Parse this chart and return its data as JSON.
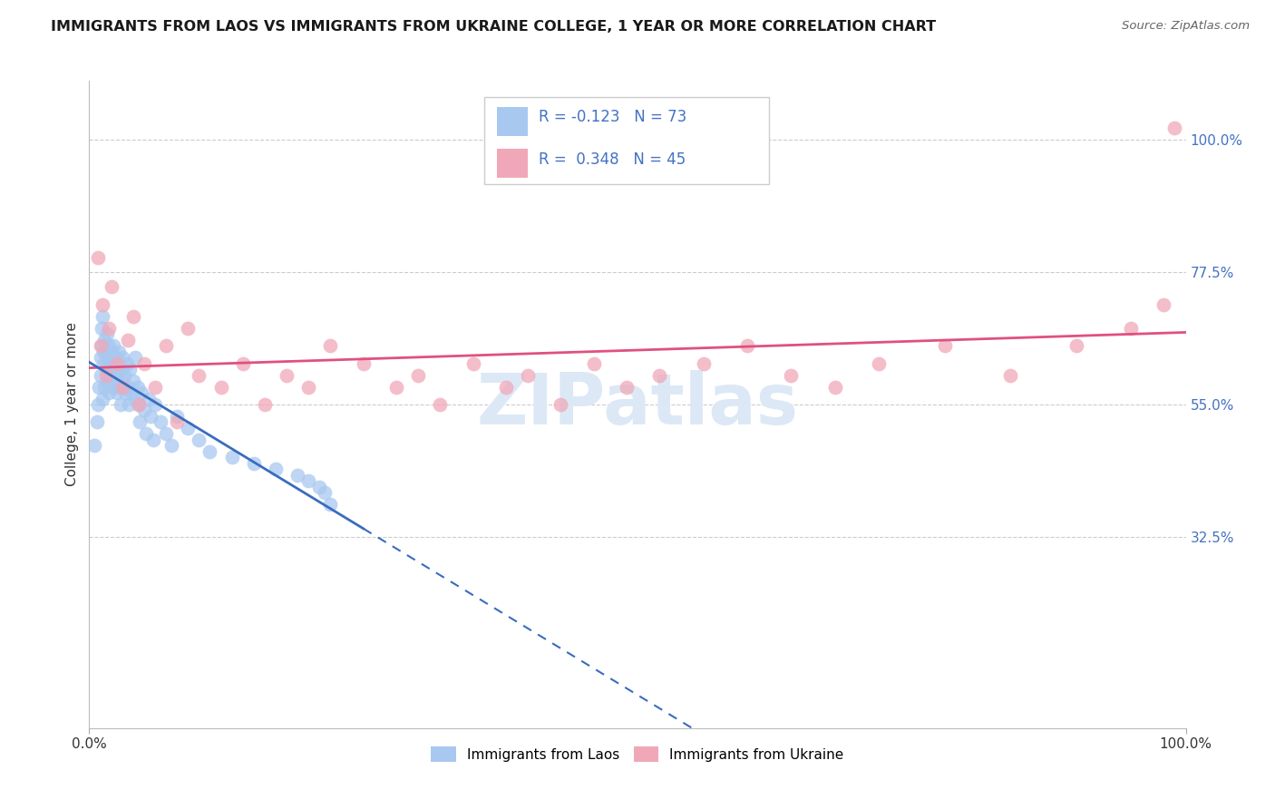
{
  "title": "IMMIGRANTS FROM LAOS VS IMMIGRANTS FROM UKRAINE COLLEGE, 1 YEAR OR MORE CORRELATION CHART",
  "source": "Source: ZipAtlas.com",
  "ylabel": "College, 1 year or more",
  "legend_label1": "Immigrants from Laos",
  "legend_label2": "Immigrants from Ukraine",
  "R1": -0.123,
  "N1": 73,
  "R2": 0.348,
  "N2": 45,
  "color1": "#a8c8f0",
  "color2": "#f0a8b8",
  "line1_color": "#3a6cbf",
  "line2_color": "#e05080",
  "watermark_color": "#dce8f5",
  "xlim": [
    0.0,
    1.0
  ],
  "ylim": [
    0.0,
    1.1
  ],
  "ytick_vals": [
    0.325,
    0.55,
    0.775,
    1.0
  ],
  "ytick_labels": [
    "32.5%",
    "55.0%",
    "77.5%",
    "100.0%"
  ],
  "laos_x": [
    0.005,
    0.007,
    0.008,
    0.009,
    0.01,
    0.01,
    0.011,
    0.011,
    0.012,
    0.012,
    0.013,
    0.013,
    0.014,
    0.014,
    0.015,
    0.015,
    0.016,
    0.016,
    0.017,
    0.018,
    0.018,
    0.019,
    0.02,
    0.02,
    0.021,
    0.022,
    0.022,
    0.023,
    0.024,
    0.025,
    0.025,
    0.026,
    0.027,
    0.028,
    0.028,
    0.029,
    0.03,
    0.03,
    0.032,
    0.033,
    0.034,
    0.035,
    0.036,
    0.037,
    0.038,
    0.04,
    0.041,
    0.042,
    0.044,
    0.045,
    0.046,
    0.048,
    0.05,
    0.052,
    0.054,
    0.056,
    0.058,
    0.06,
    0.065,
    0.07,
    0.075,
    0.08,
    0.09,
    0.1,
    0.11,
    0.13,
    0.15,
    0.17,
    0.19,
    0.2,
    0.21,
    0.215,
    0.22
  ],
  "laos_y": [
    0.48,
    0.52,
    0.55,
    0.58,
    0.6,
    0.63,
    0.65,
    0.68,
    0.56,
    0.7,
    0.62,
    0.64,
    0.58,
    0.66,
    0.61,
    0.64,
    0.59,
    0.67,
    0.63,
    0.57,
    0.65,
    0.6,
    0.62,
    0.64,
    0.58,
    0.61,
    0.65,
    0.59,
    0.63,
    0.57,
    0.6,
    0.62,
    0.64,
    0.58,
    0.61,
    0.55,
    0.59,
    0.63,
    0.6,
    0.57,
    0.62,
    0.58,
    0.55,
    0.61,
    0.57,
    0.59,
    0.56,
    0.63,
    0.58,
    0.55,
    0.52,
    0.57,
    0.54,
    0.5,
    0.56,
    0.53,
    0.49,
    0.55,
    0.52,
    0.5,
    0.48,
    0.53,
    0.51,
    0.49,
    0.47,
    0.46,
    0.45,
    0.44,
    0.43,
    0.42,
    0.41,
    0.4,
    0.38
  ],
  "ukraine_x": [
    0.008,
    0.01,
    0.012,
    0.015,
    0.018,
    0.02,
    0.025,
    0.03,
    0.035,
    0.04,
    0.045,
    0.05,
    0.06,
    0.07,
    0.08,
    0.09,
    0.1,
    0.12,
    0.14,
    0.16,
    0.18,
    0.2,
    0.22,
    0.25,
    0.28,
    0.3,
    0.32,
    0.35,
    0.38,
    0.4,
    0.43,
    0.46,
    0.49,
    0.52,
    0.56,
    0.6,
    0.64,
    0.68,
    0.72,
    0.78,
    0.84,
    0.9,
    0.95,
    0.98,
    0.99
  ],
  "ukraine_y": [
    0.8,
    0.65,
    0.72,
    0.6,
    0.68,
    0.75,
    0.62,
    0.58,
    0.66,
    0.7,
    0.55,
    0.62,
    0.58,
    0.65,
    0.52,
    0.68,
    0.6,
    0.58,
    0.62,
    0.55,
    0.6,
    0.58,
    0.65,
    0.62,
    0.58,
    0.6,
    0.55,
    0.62,
    0.58,
    0.6,
    0.55,
    0.62,
    0.58,
    0.6,
    0.62,
    0.65,
    0.6,
    0.58,
    0.62,
    0.65,
    0.6,
    0.65,
    0.68,
    0.72,
    1.02
  ]
}
